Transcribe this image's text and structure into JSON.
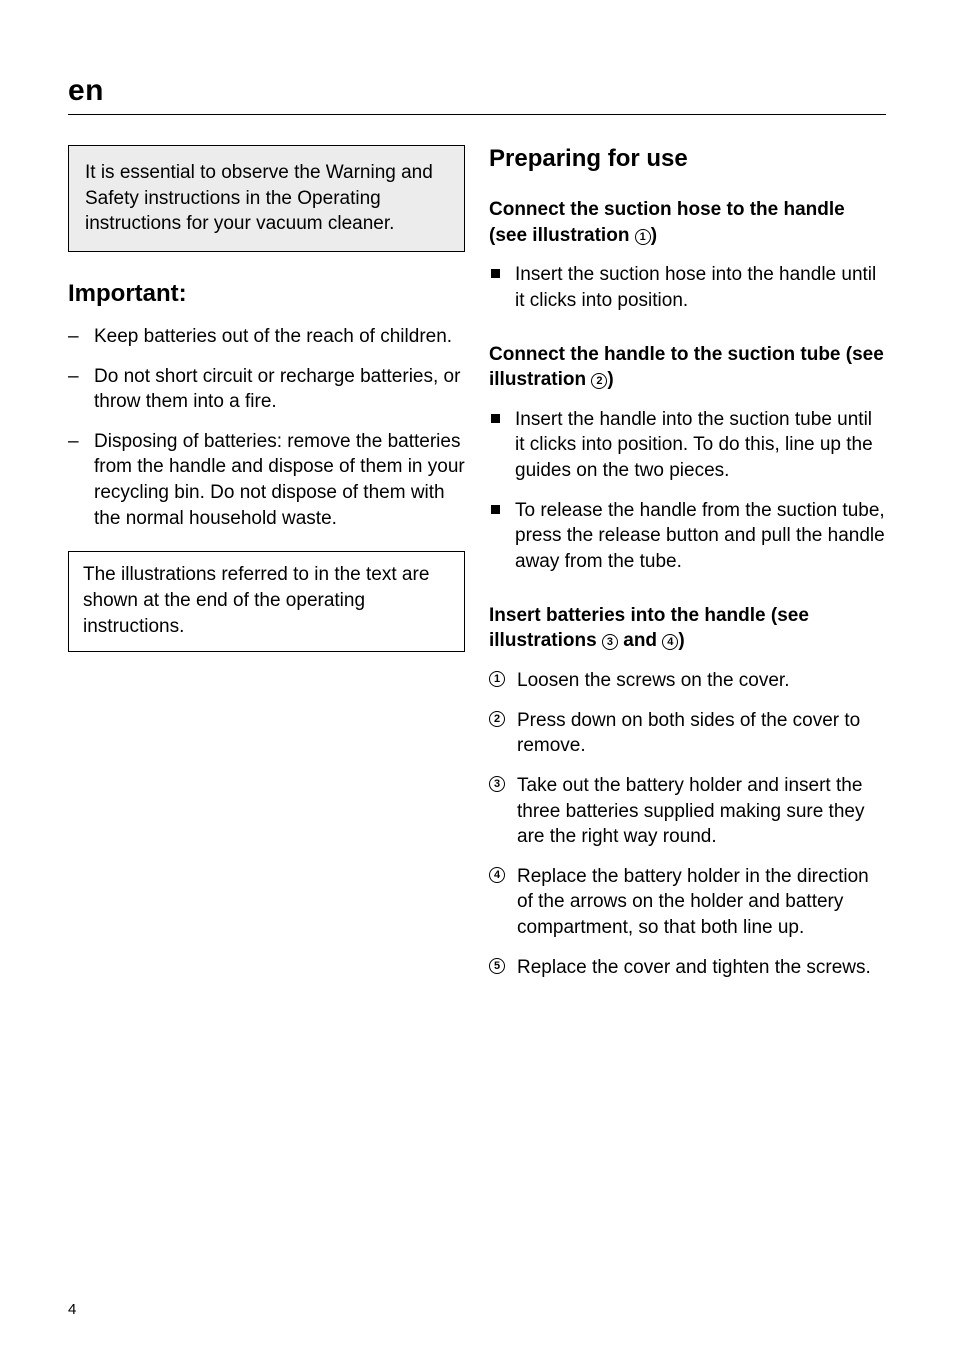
{
  "header": {
    "lang": "en"
  },
  "footer": {
    "page": "4"
  },
  "left": {
    "warning": "It is essential to observe the Warning and Safety instructions in the Operating instructions for your vacuum cleaner.",
    "important_heading": "Important:",
    "important_items": [
      "Keep batteries out of the reach of children.",
      "Do not short circuit or recharge batteries, or throw them into a fire.",
      "Disposing of batteries: remove the batteries from the handle and dispose of them in your recycling bin. Do not dispose of them with the normal household waste."
    ],
    "illus_note": "The illustrations referred to in the text are shown at the end of the operating instructions."
  },
  "right": {
    "heading": "Preparing for use",
    "s1": {
      "title_a": "Connect the suction hose to the handle (see illustration ",
      "title_num": "1",
      "title_b": ")",
      "items": [
        "Insert the suction hose into the handle until it clicks into position."
      ]
    },
    "s2": {
      "title_a": "Connect the handle to the suction tube (see illustration ",
      "title_num": "2",
      "title_b": ")",
      "items": [
        "Insert the handle into the suction tube until it clicks into position. To do this, line up the guides on the two pieces.",
        "To release the handle from the suction tube, press the release button and pull the handle away from the tube."
      ]
    },
    "s3": {
      "title_a": "Insert batteries into the handle (see illustrations ",
      "title_num1": "3",
      "title_mid": " and ",
      "title_num2": "4",
      "title_b": ")",
      "steps": [
        "Loosen the screws on the cover.",
        "Press down on both sides of the cover to remove.",
        "Take out the battery holder and insert the three batteries supplied making sure they are the right way round.",
        "Replace the battery holder in the direction of the arrows on the holder and battery compartment, so that both line up.",
        "Replace the cover and tighten the screws."
      ]
    }
  }
}
